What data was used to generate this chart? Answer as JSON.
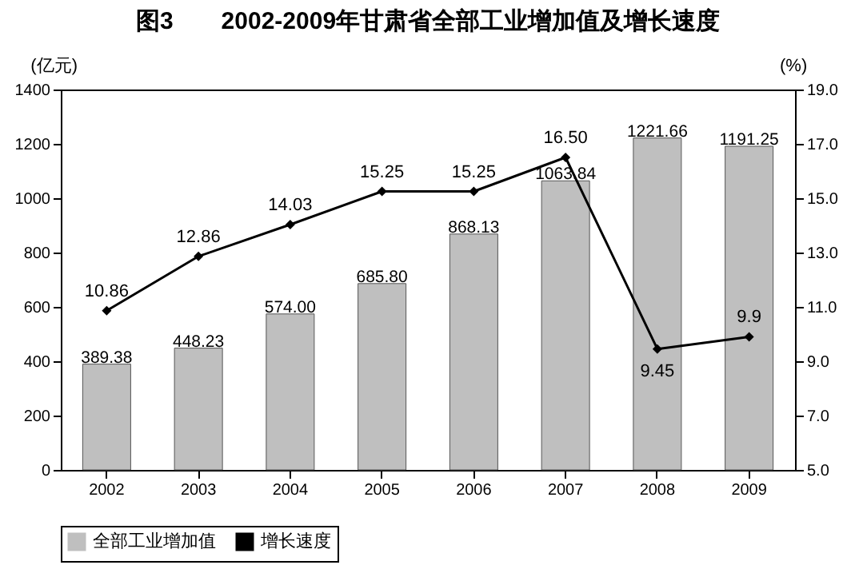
{
  "chart_data": {
    "type": "bar",
    "title": "图3　　2002-2009年甘肃省全部工业增加值及增长速度",
    "ylabel": "(亿元)",
    "y2label": "(%)",
    "categories": [
      "2002",
      "2003",
      "2004",
      "2005",
      "2006",
      "2007",
      "2008",
      "2009"
    ],
    "series": [
      {
        "name": "全部工业增加值",
        "color": "#bfbfbf",
        "values": [
          389.38,
          448.23,
          574.0,
          685.8,
          868.13,
          1063.84,
          1221.66,
          1191.25
        ],
        "value_labels": [
          "389.38",
          "448.23",
          "574.00",
          "685.80",
          "868.13",
          "1063.84",
          "1221.66",
          "1191.25"
        ]
      },
      {
        "name": "增长速度",
        "type": "line",
        "axis": "y2",
        "color": "#000000",
        "marker": "diamond",
        "values": [
          10.86,
          12.86,
          14.03,
          15.25,
          15.25,
          16.5,
          9.45,
          9.9
        ],
        "value_labels": [
          "10.86",
          "12.86",
          "14.03",
          "15.25",
          "15.25",
          "16.50",
          "9.45",
          "9.9"
        ]
      }
    ],
    "ylim": [
      0,
      1400
    ],
    "yticks": [
      0,
      200,
      400,
      600,
      800,
      1000,
      1200,
      1400
    ],
    "y2lim": [
      5,
      19
    ],
    "y2ticks": [
      {
        "value": 5,
        "label": "5.0"
      },
      {
        "value": 7,
        "label": "7.0"
      },
      {
        "value": 9,
        "label": "9.0"
      },
      {
        "value": 11,
        "label": "11.0"
      },
      {
        "value": 13,
        "label": "13.0"
      },
      {
        "value": 15,
        "label": "15.0"
      },
      {
        "value": 17,
        "label": "17.0"
      },
      {
        "value": 19,
        "label": "19.0"
      }
    ],
    "legend": "bottom",
    "grid": false
  }
}
